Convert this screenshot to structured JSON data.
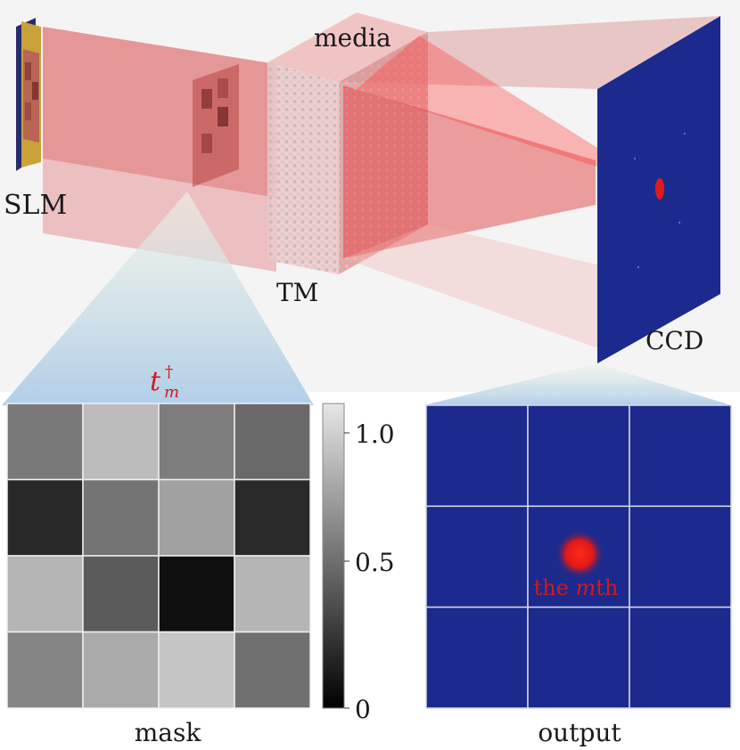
{
  "labels": {
    "slm": "SLM",
    "media": "media",
    "tm": "TM",
    "ccd": "CCD",
    "tm_dagger_base": "t",
    "tm_dagger_sup": "†",
    "tm_dagger_sub": "m",
    "mask": "mask",
    "output": "output",
    "the_mth_prefix": "the ",
    "the_mth_var": "m",
    "the_mth_suffix": "th"
  },
  "colorbar": {
    "ticks": [
      "1.0",
      "0.5",
      "0"
    ],
    "range": [
      0,
      1.0
    ]
  },
  "mask_grid": {
    "rows": 4,
    "cols": 4,
    "values": [
      [
        0.5,
        0.8,
        0.52,
        0.43
      ],
      [
        0.14,
        0.48,
        0.68,
        0.15
      ],
      [
        0.77,
        0.37,
        0.03,
        0.77
      ],
      [
        0.55,
        0.72,
        0.84,
        0.46
      ]
    ]
  },
  "output_grid": {
    "rows": 3,
    "cols": 3,
    "focus_cell": [
      1,
      1
    ],
    "background": "#1b2a8c",
    "spot_color": "#e01b1b"
  },
  "colors": {
    "beam": "#e23a3a",
    "ccd_panel": "#1b2a8c",
    "slm_frame": "#c9a23a",
    "label_red": "#d11a1a"
  }
}
